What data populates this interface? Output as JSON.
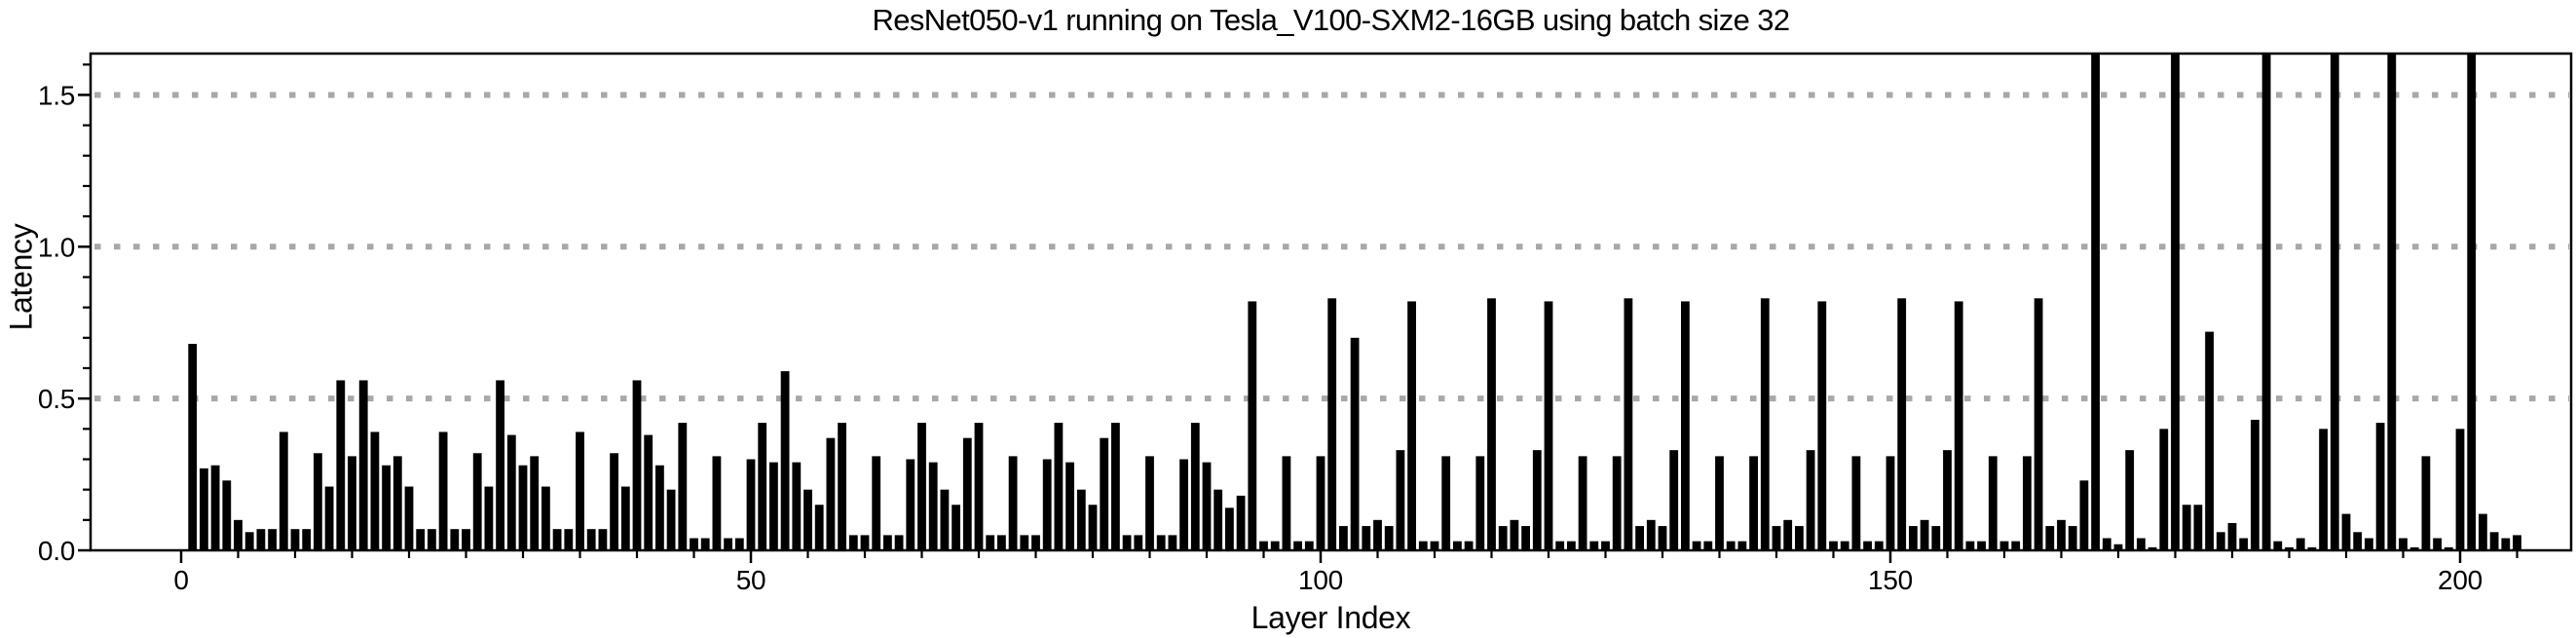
{
  "chart_data": {
    "type": "bar",
    "title": "ResNet050-v1 running on Tesla_V100-SXM2-16GB using batch size 32",
    "xlabel": "Layer Index",
    "ylabel": "Latency",
    "x_start_index": 1,
    "x_ticks": [
      0,
      50,
      100,
      150,
      200
    ],
    "x_tick_labels": [
      "0",
      "50",
      "100",
      "150",
      "200"
    ],
    "x_minor_tick_step": 5,
    "y_ticks": [
      0.0,
      0.5,
      1.0,
      1.5
    ],
    "y_tick_labels": [
      "0.0",
      "0.5",
      "1.0",
      "1.5"
    ],
    "y_minor_tick_step": 0.1,
    "ylim": [
      0,
      1.636
    ],
    "xlim_index": [
      -8,
      210
    ],
    "grid": "horizontal dotted lines at y = 0.5, 1.0, 1.5",
    "legend": "none",
    "bar_color": "#000000",
    "grid_color": "#a8a8a8",
    "axis_color": "#000000",
    "background_color": "#ffffff",
    "clipped_note": "bars with value 1.64 exceed the y-axis range and are clipped flush with the top frame",
    "values": [
      0.68,
      0.27,
      0.28,
      0.23,
      0.1,
      0.06,
      0.07,
      0.07,
      0.39,
      0.07,
      0.07,
      0.32,
      0.21,
      0.56,
      0.31,
      0.56,
      0.39,
      0.28,
      0.31,
      0.21,
      0.07,
      0.07,
      0.39,
      0.07,
      0.07,
      0.32,
      0.21,
      0.56,
      0.38,
      0.28,
      0.31,
      0.21,
      0.07,
      0.07,
      0.39,
      0.07,
      0.07,
      0.32,
      0.21,
      0.56,
      0.38,
      0.28,
      0.2,
      0.42,
      0.04,
      0.04,
      0.31,
      0.04,
      0.04,
      0.3,
      0.42,
      0.29,
      0.59,
      0.29,
      0.2,
      0.15,
      0.37,
      0.42,
      0.05,
      0.05,
      0.31,
      0.05,
      0.05,
      0.3,
      0.42,
      0.29,
      0.2,
      0.15,
      0.37,
      0.42,
      0.05,
      0.05,
      0.31,
      0.05,
      0.05,
      0.3,
      0.42,
      0.29,
      0.2,
      0.15,
      0.37,
      0.42,
      0.05,
      0.05,
      0.31,
      0.05,
      0.05,
      0.3,
      0.42,
      0.29,
      0.2,
      0.14,
      0.18,
      0.82,
      0.03,
      0.03,
      0.31,
      0.03,
      0.03,
      0.31,
      0.83,
      0.08,
      0.7,
      0.08,
      0.1,
      0.08,
      0.33,
      0.82,
      0.03,
      0.03,
      0.31,
      0.03,
      0.03,
      0.31,
      0.83,
      0.08,
      0.1,
      0.08,
      0.33,
      0.82,
      0.03,
      0.03,
      0.31,
      0.03,
      0.03,
      0.31,
      0.83,
      0.08,
      0.1,
      0.08,
      0.33,
      0.82,
      0.03,
      0.03,
      0.31,
      0.03,
      0.03,
      0.31,
      0.83,
      0.08,
      0.1,
      0.08,
      0.33,
      0.82,
      0.03,
      0.03,
      0.31,
      0.03,
      0.03,
      0.31,
      0.83,
      0.08,
      0.1,
      0.08,
      0.33,
      0.82,
      0.03,
      0.03,
      0.31,
      0.03,
      0.03,
      0.31,
      0.83,
      0.08,
      0.1,
      0.08,
      0.23,
      1.64,
      0.04,
      0.02,
      0.33,
      0.04,
      0.01,
      0.4,
      1.64,
      0.15,
      0.15,
      0.72,
      0.06,
      0.09,
      0.04,
      0.43,
      1.64,
      0.03,
      0.01,
      0.04,
      0.01,
      0.4,
      1.64,
      0.12,
      0.06,
      0.04,
      0.42,
      1.64,
      0.04,
      0.01,
      0.31,
      0.04,
      0.01,
      0.4,
      1.64,
      0.12,
      0.06,
      0.04,
      0.05
    ]
  }
}
